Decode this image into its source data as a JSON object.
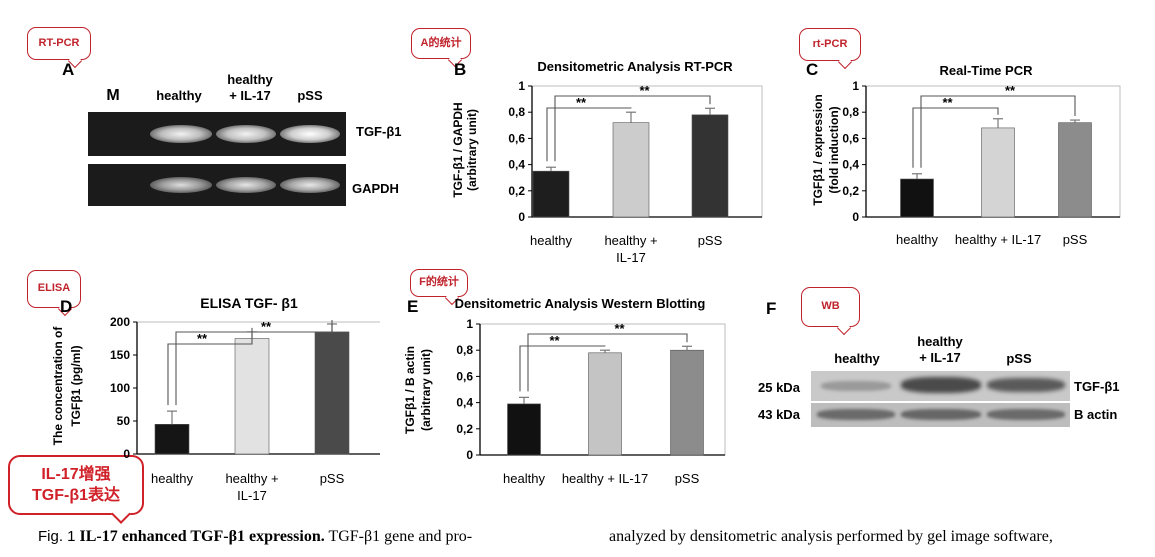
{
  "callouts": {
    "rtpcr": "RT-PCR",
    "a_stats": "A的统计",
    "rt_pcr": "rt-PCR",
    "elisa": "ELISA",
    "f_stats": "F的统计",
    "wb": "WB",
    "summary_line1": "IL-17增强",
    "summary_line2": "TGF-β1表达"
  },
  "panel_a": {
    "letter": "A",
    "lanes": [
      "M",
      "healthy",
      "healthy\n+ IL-17",
      "pSS"
    ],
    "row_labels": [
      "TGF-β1",
      "GAPDH"
    ]
  },
  "panel_f": {
    "letter": "F",
    "lanes": [
      "healthy",
      "healthy\n+ IL-17",
      "pSS"
    ],
    "size_labels": [
      "25 kDa",
      "43 kDa"
    ],
    "row_labels": [
      "TGF-β1",
      "B actin"
    ]
  },
  "chart_data": [
    {
      "panel": "B",
      "type": "bar",
      "title": "Densitometric Analysis RT-PCR",
      "ylabel_lines": [
        "TGF-β1 / GAPDH",
        "(arbitrary unit)"
      ],
      "categories": [
        "healthy",
        "healthy +\nIL-17",
        "pSS"
      ],
      "values": [
        0.35,
        0.72,
        0.78
      ],
      "errors": [
        0.03,
        0.08,
        0.05
      ],
      "ylim": [
        0,
        1
      ],
      "yticks": [
        "0",
        "0,2",
        "0,4",
        "0,6",
        "0,8",
        "1"
      ],
      "bar_colors": [
        "#1e1e1e",
        "#cccccc",
        "#333333"
      ],
      "significance": [
        "**",
        "**"
      ]
    },
    {
      "panel": "C",
      "type": "bar",
      "title": "Real-Time PCR",
      "ylabel_lines": [
        "TGFβ1 / expression",
        "(fold induction)"
      ],
      "categories": [
        "healthy",
        "healthy + IL-17",
        "pSS"
      ],
      "values": [
        0.29,
        0.68,
        0.72
      ],
      "errors": [
        0.04,
        0.07,
        0.02
      ],
      "ylim": [
        0,
        1
      ],
      "yticks": [
        "0",
        "0,2",
        "0,4",
        "0,6",
        "0,8",
        "1"
      ],
      "bar_colors": [
        "#111111",
        "#d4d4d4",
        "#8c8c8c"
      ],
      "significance": [
        "**",
        "**"
      ]
    },
    {
      "panel": "D",
      "type": "bar",
      "title": "ELISA TGF- β1",
      "ylabel_lines": [
        "The concentration of",
        "TGFβ1 (pg/ml)"
      ],
      "categories": [
        "healthy",
        "healthy +\nIL-17",
        "pSS"
      ],
      "values": [
        45,
        175,
        185
      ],
      "errors": [
        20,
        10,
        12
      ],
      "ylim": [
        0,
        200
      ],
      "yticks": [
        "0",
        "50",
        "100",
        "150",
        "200"
      ],
      "bar_colors": [
        "#151515",
        "#e2e2e2",
        "#4a4a4a"
      ],
      "significance": [
        "**",
        "**"
      ]
    },
    {
      "panel": "E",
      "type": "bar",
      "title": "Densitometric Analysis Western Blotting",
      "ylabel_lines": [
        "TGFβ1 / B actin",
        "(arbitrary unit)"
      ],
      "categories": [
        "healthy",
        "healthy + IL-17",
        "pSS"
      ],
      "values": [
        0.39,
        0.78,
        0.8
      ],
      "errors": [
        0.05,
        0.02,
        0.03
      ],
      "ylim": [
        0,
        1
      ],
      "yticks": [
        "0",
        "0,2",
        "0,4",
        "0,6",
        "0,8",
        "1"
      ],
      "bar_colors": [
        "#111111",
        "#c4c4c4",
        "#8c8c8c"
      ],
      "significance": [
        "**",
        "**"
      ]
    }
  ],
  "caption": {
    "fig": "Fig. 1",
    "bold": "IL-17 enhanced TGF-β1 expression.",
    "left_rest": "TGF-β1 gene and pro-",
    "right": "analyzed by densitometric analysis performed by gel image software,"
  }
}
